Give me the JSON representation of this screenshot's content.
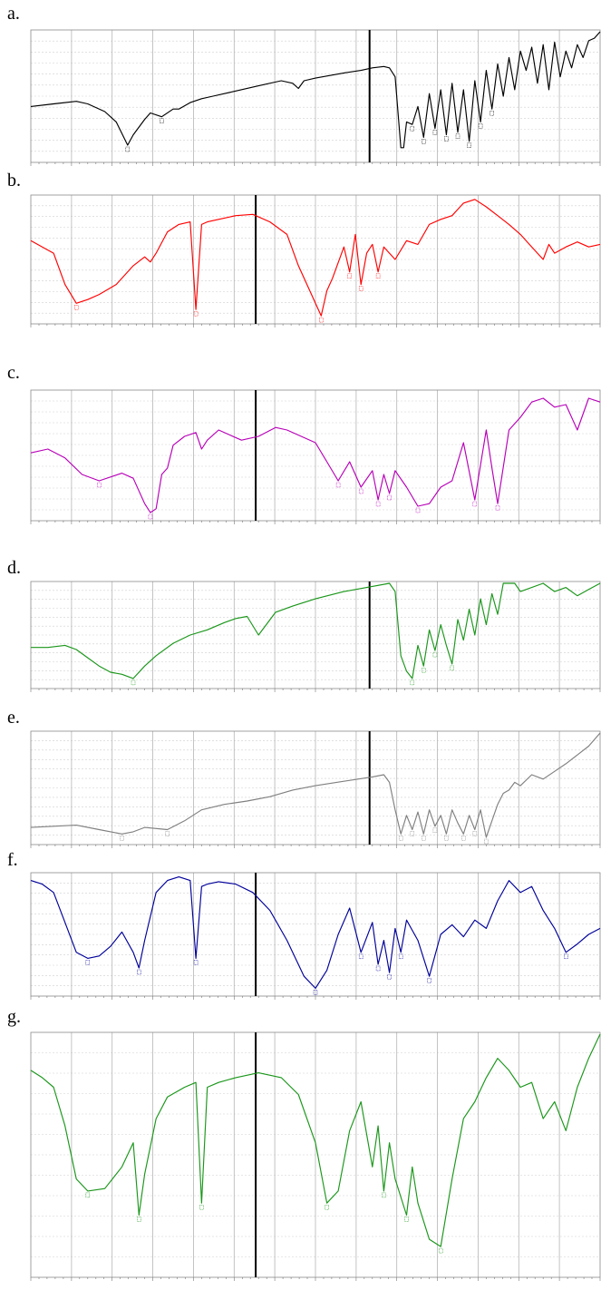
{
  "panels": [
    {
      "letter": "a.",
      "color": "#000000"
    },
    {
      "letter": "b.",
      "color": "#ff0000"
    },
    {
      "letter": "c.",
      "color": "#b800b8"
    },
    {
      "letter": "d.",
      "color": "#1a961a"
    },
    {
      "letter": "e.",
      "color": "#808080"
    },
    {
      "letter": "f.",
      "color": "#00009a"
    },
    {
      "letter": "g.",
      "color": "#1a961a"
    }
  ],
  "chart_data": [
    {
      "type": "line",
      "panel": "a.",
      "series": [
        {
          "color": "#000000",
          "x": [
            0,
            0.04,
            0.08,
            0.1,
            0.13,
            0.15,
            0.17,
            0.18,
            0.2,
            0.21,
            0.23,
            0.25,
            0.26,
            0.28,
            0.3,
            0.32,
            0.34,
            0.36,
            0.4,
            0.44,
            0.46,
            0.47,
            0.48,
            0.5,
            0.55,
            0.58,
            0.6,
            0.62,
            0.63,
            0.64,
            0.65,
            0.655,
            0.66,
            0.67,
            0.68,
            0.69,
            0.7,
            0.71,
            0.72,
            0.73,
            0.74,
            0.75,
            0.76,
            0.77,
            0.78,
            0.79,
            0.8,
            0.81,
            0.82,
            0.83,
            0.84,
            0.85,
            0.86,
            0.87,
            0.88,
            0.89,
            0.9,
            0.91,
            0.92,
            0.93,
            0.94,
            0.95,
            0.96,
            0.97,
            0.98,
            0.99,
            1
          ],
          "y": [
            0.42,
            0.44,
            0.46,
            0.44,
            0.38,
            0.3,
            0.12,
            0.2,
            0.32,
            0.37,
            0.34,
            0.4,
            0.4,
            0.45,
            0.48,
            0.5,
            0.52,
            0.54,
            0.58,
            0.62,
            0.6,
            0.56,
            0.62,
            0.64,
            0.68,
            0.7,
            0.72,
            0.73,
            0.72,
            0.65,
            0.1,
            0.1,
            0.3,
            0.28,
            0.42,
            0.18,
            0.52,
            0.25,
            0.55,
            0.2,
            0.6,
            0.22,
            0.55,
            0.15,
            0.62,
            0.3,
            0.7,
            0.4,
            0.75,
            0.5,
            0.8,
            0.55,
            0.85,
            0.7,
            0.88,
            0.6,
            0.9,
            0.55,
            0.92,
            0.65,
            0.85,
            0.72,
            0.9,
            0.8,
            0.93,
            0.95,
            1.0
          ]
        }
      ]
    },
    {
      "type": "line",
      "panel": "b.",
      "series": [
        {
          "color": "#ff0000",
          "x": [
            0,
            0.02,
            0.04,
            0.06,
            0.08,
            0.1,
            0.12,
            0.15,
            0.18,
            0.2,
            0.21,
            0.22,
            0.24,
            0.26,
            0.28,
            0.29,
            0.3,
            0.31,
            0.33,
            0.36,
            0.39,
            0.42,
            0.45,
            0.47,
            0.5,
            0.51,
            0.52,
            0.53,
            0.55,
            0.56,
            0.57,
            0.58,
            0.59,
            0.6,
            0.61,
            0.62,
            0.63,
            0.64,
            0.66,
            0.68,
            0.7,
            0.72,
            0.74,
            0.76,
            0.78,
            0.8,
            0.82,
            0.84,
            0.86,
            0.88,
            0.9,
            0.91,
            0.92,
            0.94,
            0.96,
            0.98,
            1
          ],
          "y": [
            0.65,
            0.6,
            0.55,
            0.3,
            0.15,
            0.18,
            0.22,
            0.3,
            0.45,
            0.52,
            0.48,
            0.55,
            0.72,
            0.78,
            0.8,
            0.1,
            0.78,
            0.8,
            0.82,
            0.85,
            0.86,
            0.8,
            0.7,
            0.45,
            0.15,
            0.05,
            0.25,
            0.35,
            0.6,
            0.4,
            0.7,
            0.3,
            0.55,
            0.62,
            0.4,
            0.6,
            0.55,
            0.5,
            0.65,
            0.62,
            0.78,
            0.82,
            0.85,
            0.95,
            0.98,
            0.92,
            0.85,
            0.78,
            0.7,
            0.6,
            0.5,
            0.62,
            0.55,
            0.6,
            0.64,
            0.6,
            0.62
          ]
        }
      ]
    },
    {
      "type": "line",
      "panel": "c.",
      "series": [
        {
          "color": "#b800b8",
          "x": [
            0,
            0.03,
            0.06,
            0.09,
            0.12,
            0.16,
            0.18,
            0.2,
            0.21,
            0.22,
            0.23,
            0.24,
            0.25,
            0.27,
            0.29,
            0.3,
            0.31,
            0.33,
            0.35,
            0.37,
            0.4,
            0.43,
            0.45,
            0.47,
            0.5,
            0.52,
            0.54,
            0.56,
            0.58,
            0.6,
            0.61,
            0.62,
            0.63,
            0.64,
            0.66,
            0.68,
            0.7,
            0.72,
            0.74,
            0.76,
            0.78,
            0.8,
            0.81,
            0.82,
            0.84,
            0.86,
            0.88,
            0.9,
            0.92,
            0.94,
            0.96,
            0.98,
            1
          ],
          "y": [
            0.52,
            0.55,
            0.48,
            0.35,
            0.3,
            0.36,
            0.32,
            0.12,
            0.05,
            0.08,
            0.35,
            0.4,
            0.58,
            0.65,
            0.68,
            0.55,
            0.62,
            0.7,
            0.66,
            0.62,
            0.65,
            0.72,
            0.7,
            0.66,
            0.6,
            0.45,
            0.3,
            0.45,
            0.25,
            0.38,
            0.15,
            0.35,
            0.2,
            0.38,
            0.25,
            0.1,
            0.12,
            0.25,
            0.3,
            0.6,
            0.15,
            0.7,
            0.4,
            0.12,
            0.7,
            0.8,
            0.92,
            0.95,
            0.88,
            0.9,
            0.7,
            0.95,
            0.92
          ]
        }
      ]
    },
    {
      "type": "line",
      "panel": "d.",
      "series": [
        {
          "color": "#1a961a",
          "x": [
            0,
            0.03,
            0.06,
            0.08,
            0.1,
            0.12,
            0.14,
            0.16,
            0.18,
            0.2,
            0.22,
            0.25,
            0.28,
            0.31,
            0.34,
            0.36,
            0.38,
            0.4,
            0.43,
            0.46,
            0.5,
            0.55,
            0.6,
            0.63,
            0.64,
            0.65,
            0.66,
            0.67,
            0.68,
            0.69,
            0.7,
            0.71,
            0.72,
            0.73,
            0.74,
            0.75,
            0.76,
            0.77,
            0.78,
            0.79,
            0.8,
            0.81,
            0.82,
            0.83,
            0.84,
            0.85,
            0.86,
            0.9,
            0.92,
            0.94,
            0.96,
            0.98,
            1
          ],
          "y": [
            0.38,
            0.38,
            0.4,
            0.36,
            0.28,
            0.2,
            0.14,
            0.12,
            0.08,
            0.2,
            0.3,
            0.42,
            0.5,
            0.55,
            0.62,
            0.66,
            0.68,
            0.5,
            0.72,
            0.78,
            0.85,
            0.92,
            0.97,
            1.0,
            0.92,
            0.3,
            0.15,
            0.08,
            0.4,
            0.2,
            0.55,
            0.35,
            0.6,
            0.4,
            0.22,
            0.65,
            0.45,
            0.75,
            0.5,
            0.85,
            0.6,
            0.9,
            0.7,
            1.0,
            1.0,
            1.0,
            0.92,
            1.0,
            0.92,
            0.96,
            0.88,
            0.94,
            1.0
          ]
        }
      ]
    },
    {
      "type": "line",
      "panel": "e.",
      "series": [
        {
          "color": "#808080",
          "x": [
            0,
            0.04,
            0.08,
            0.12,
            0.16,
            0.18,
            0.2,
            0.24,
            0.27,
            0.3,
            0.34,
            0.38,
            0.42,
            0.46,
            0.5,
            0.55,
            0.6,
            0.62,
            0.63,
            0.64,
            0.65,
            0.66,
            0.67,
            0.68,
            0.69,
            0.7,
            0.71,
            0.72,
            0.73,
            0.74,
            0.75,
            0.76,
            0.77,
            0.78,
            0.79,
            0.8,
            0.81,
            0.82,
            0.83,
            0.84,
            0.85,
            0.86,
            0.88,
            0.9,
            0.92,
            0.94,
            0.96,
            0.98,
            1
          ],
          "y": [
            0.14,
            0.15,
            0.16,
            0.12,
            0.08,
            0.1,
            0.14,
            0.12,
            0.2,
            0.3,
            0.35,
            0.38,
            0.42,
            0.48,
            0.52,
            0.56,
            0.6,
            0.62,
            0.55,
            0.3,
            0.08,
            0.25,
            0.12,
            0.28,
            0.08,
            0.3,
            0.15,
            0.25,
            0.08,
            0.3,
            0.18,
            0.08,
            0.25,
            0.12,
            0.3,
            0.05,
            0.2,
            0.35,
            0.45,
            0.48,
            0.55,
            0.52,
            0.62,
            0.58,
            0.65,
            0.72,
            0.8,
            0.88,
            1.0
          ]
        }
      ]
    },
    {
      "type": "line",
      "panel": "f.",
      "series": [
        {
          "color": "#00009a",
          "x": [
            0,
            0.02,
            0.04,
            0.06,
            0.08,
            0.1,
            0.12,
            0.14,
            0.16,
            0.18,
            0.19,
            0.2,
            0.22,
            0.24,
            0.26,
            0.28,
            0.29,
            0.3,
            0.31,
            0.33,
            0.36,
            0.39,
            0.42,
            0.45,
            0.48,
            0.5,
            0.52,
            0.54,
            0.56,
            0.58,
            0.6,
            0.61,
            0.62,
            0.63,
            0.64,
            0.65,
            0.66,
            0.68,
            0.7,
            0.72,
            0.74,
            0.76,
            0.78,
            0.8,
            0.82,
            0.84,
            0.86,
            0.88,
            0.9,
            0.92,
            0.94,
            0.96,
            0.98,
            1
          ],
          "y": [
            0.95,
            0.92,
            0.85,
            0.6,
            0.35,
            0.3,
            0.32,
            0.4,
            0.52,
            0.35,
            0.22,
            0.45,
            0.85,
            0.95,
            0.98,
            0.95,
            0.3,
            0.9,
            0.92,
            0.94,
            0.92,
            0.85,
            0.7,
            0.45,
            0.15,
            0.05,
            0.2,
            0.5,
            0.72,
            0.35,
            0.6,
            0.25,
            0.45,
            0.18,
            0.55,
            0.35,
            0.62,
            0.45,
            0.15,
            0.5,
            0.58,
            0.48,
            0.62,
            0.55,
            0.78,
            0.95,
            0.85,
            0.9,
            0.7,
            0.55,
            0.35,
            0.42,
            0.5,
            0.55
          ]
        }
      ]
    },
    {
      "type": "line",
      "panel": "g.",
      "series": [
        {
          "color": "#1a961a",
          "x": [
            0,
            0.02,
            0.04,
            0.06,
            0.08,
            0.1,
            0.13,
            0.16,
            0.18,
            0.19,
            0.2,
            0.22,
            0.24,
            0.27,
            0.29,
            0.3,
            0.31,
            0.33,
            0.36,
            0.4,
            0.44,
            0.47,
            0.5,
            0.52,
            0.54,
            0.56,
            0.58,
            0.6,
            0.61,
            0.62,
            0.63,
            0.64,
            0.66,
            0.67,
            0.68,
            0.7,
            0.72,
            0.74,
            0.76,
            0.78,
            0.8,
            0.82,
            0.84,
            0.86,
            0.88,
            0.9,
            0.92,
            0.94,
            0.96,
            0.98,
            1
          ],
          "y": [
            0.85,
            0.82,
            0.78,
            0.62,
            0.4,
            0.35,
            0.36,
            0.45,
            0.55,
            0.25,
            0.42,
            0.65,
            0.74,
            0.78,
            0.8,
            0.3,
            0.78,
            0.8,
            0.82,
            0.84,
            0.82,
            0.75,
            0.55,
            0.3,
            0.35,
            0.6,
            0.72,
            0.45,
            0.62,
            0.35,
            0.55,
            0.4,
            0.25,
            0.45,
            0.3,
            0.15,
            0.12,
            0.4,
            0.65,
            0.72,
            0.82,
            0.9,
            0.85,
            0.78,
            0.8,
            0.65,
            0.72,
            0.6,
            0.78,
            0.9,
            1.0
          ]
        }
      ]
    }
  ]
}
